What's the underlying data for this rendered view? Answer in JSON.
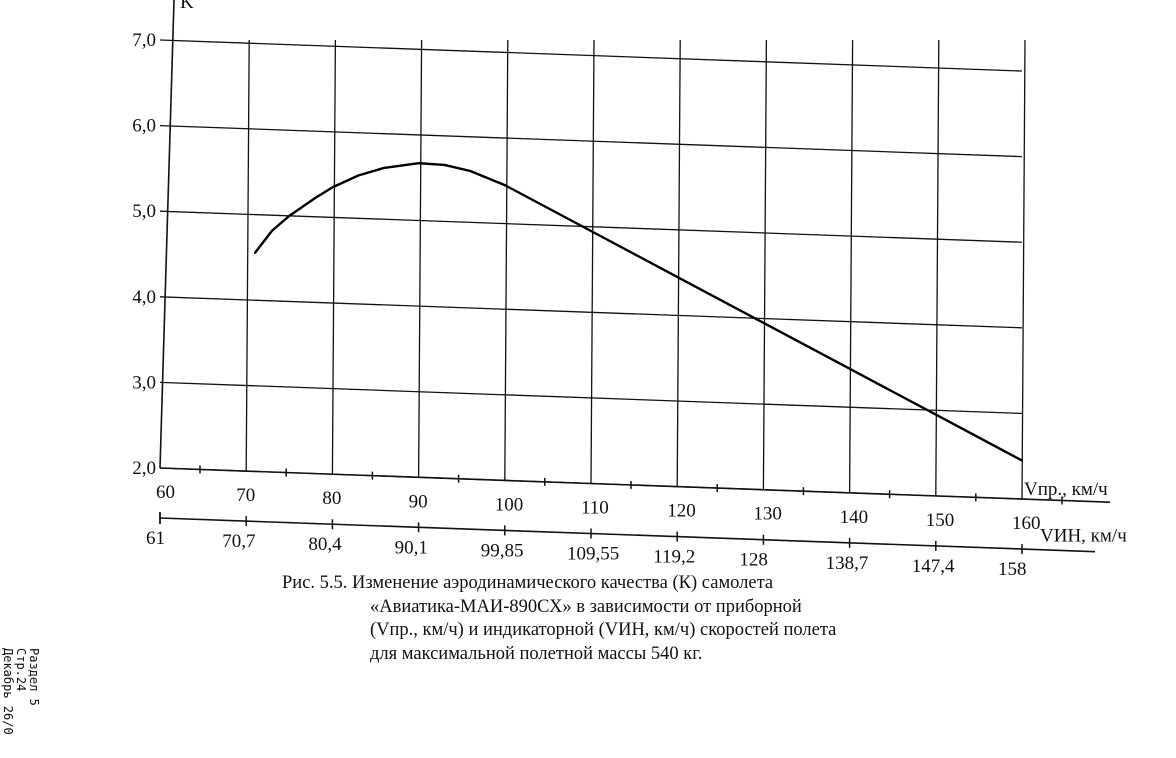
{
  "chart_data": {
    "type": "line",
    "title": "",
    "ylabel": "K",
    "xlabel": "Vпр., км/ч",
    "x2label": "VИН, км/ч",
    "ylim": [
      2.0,
      7.0
    ],
    "xlim": [
      60,
      160
    ],
    "yticks": [
      "2,0",
      "3,0",
      "4,0",
      "5,0",
      "6,0",
      "7,0"
    ],
    "xticks": [
      "60",
      "70",
      "80",
      "90",
      "100",
      "110",
      "120",
      "130",
      "140",
      "150",
      "160"
    ],
    "x2ticks": [
      "61",
      "70,7",
      "80,4",
      "90,1",
      "99,85",
      "109,55",
      "119,2",
      "128",
      "138,7",
      "147,4",
      "158"
    ],
    "grid": true,
    "series": [
      {
        "name": "K",
        "x": [
          71,
          73,
          75,
          78,
          80,
          83,
          86,
          90,
          93,
          96,
          100,
          110,
          120,
          130,
          140,
          150,
          160
        ],
        "y": [
          4.55,
          4.82,
          5.0,
          5.22,
          5.35,
          5.5,
          5.6,
          5.67,
          5.66,
          5.6,
          5.45,
          4.95,
          4.45,
          3.95,
          3.45,
          2.95,
          2.45
        ]
      }
    ]
  },
  "caption": {
    "line1": "Рис. 5.5. Изменение аэродинамического качества (К) самолета",
    "line2": "«Авиатика-МАИ-890СХ» в зависимости от приборной",
    "line3": "(Vпр., км/ч) и индикаторной (VИН, км/ч)  скоростей полета",
    "line4": "для максимальной полетной массы 540 кг."
  },
  "side_note": {
    "line1": "Раздел 5",
    "line2": "Стр.24",
    "line3": "Декабрь 26/0"
  }
}
